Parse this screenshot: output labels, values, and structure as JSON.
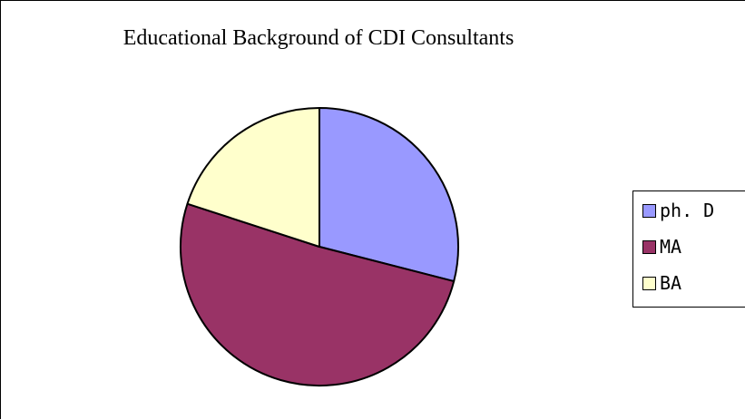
{
  "chart_data": {
    "type": "pie",
    "title": "Educational Background of CDI Consultants",
    "categories": [
      "ph. D",
      "MA",
      "BA"
    ],
    "values": [
      29,
      51,
      20
    ],
    "colors": [
      "#9999ff",
      "#993366",
      "#ffffcc"
    ],
    "start_angle_deg": 0,
    "direction": "clockwise",
    "legend_position": "right"
  }
}
